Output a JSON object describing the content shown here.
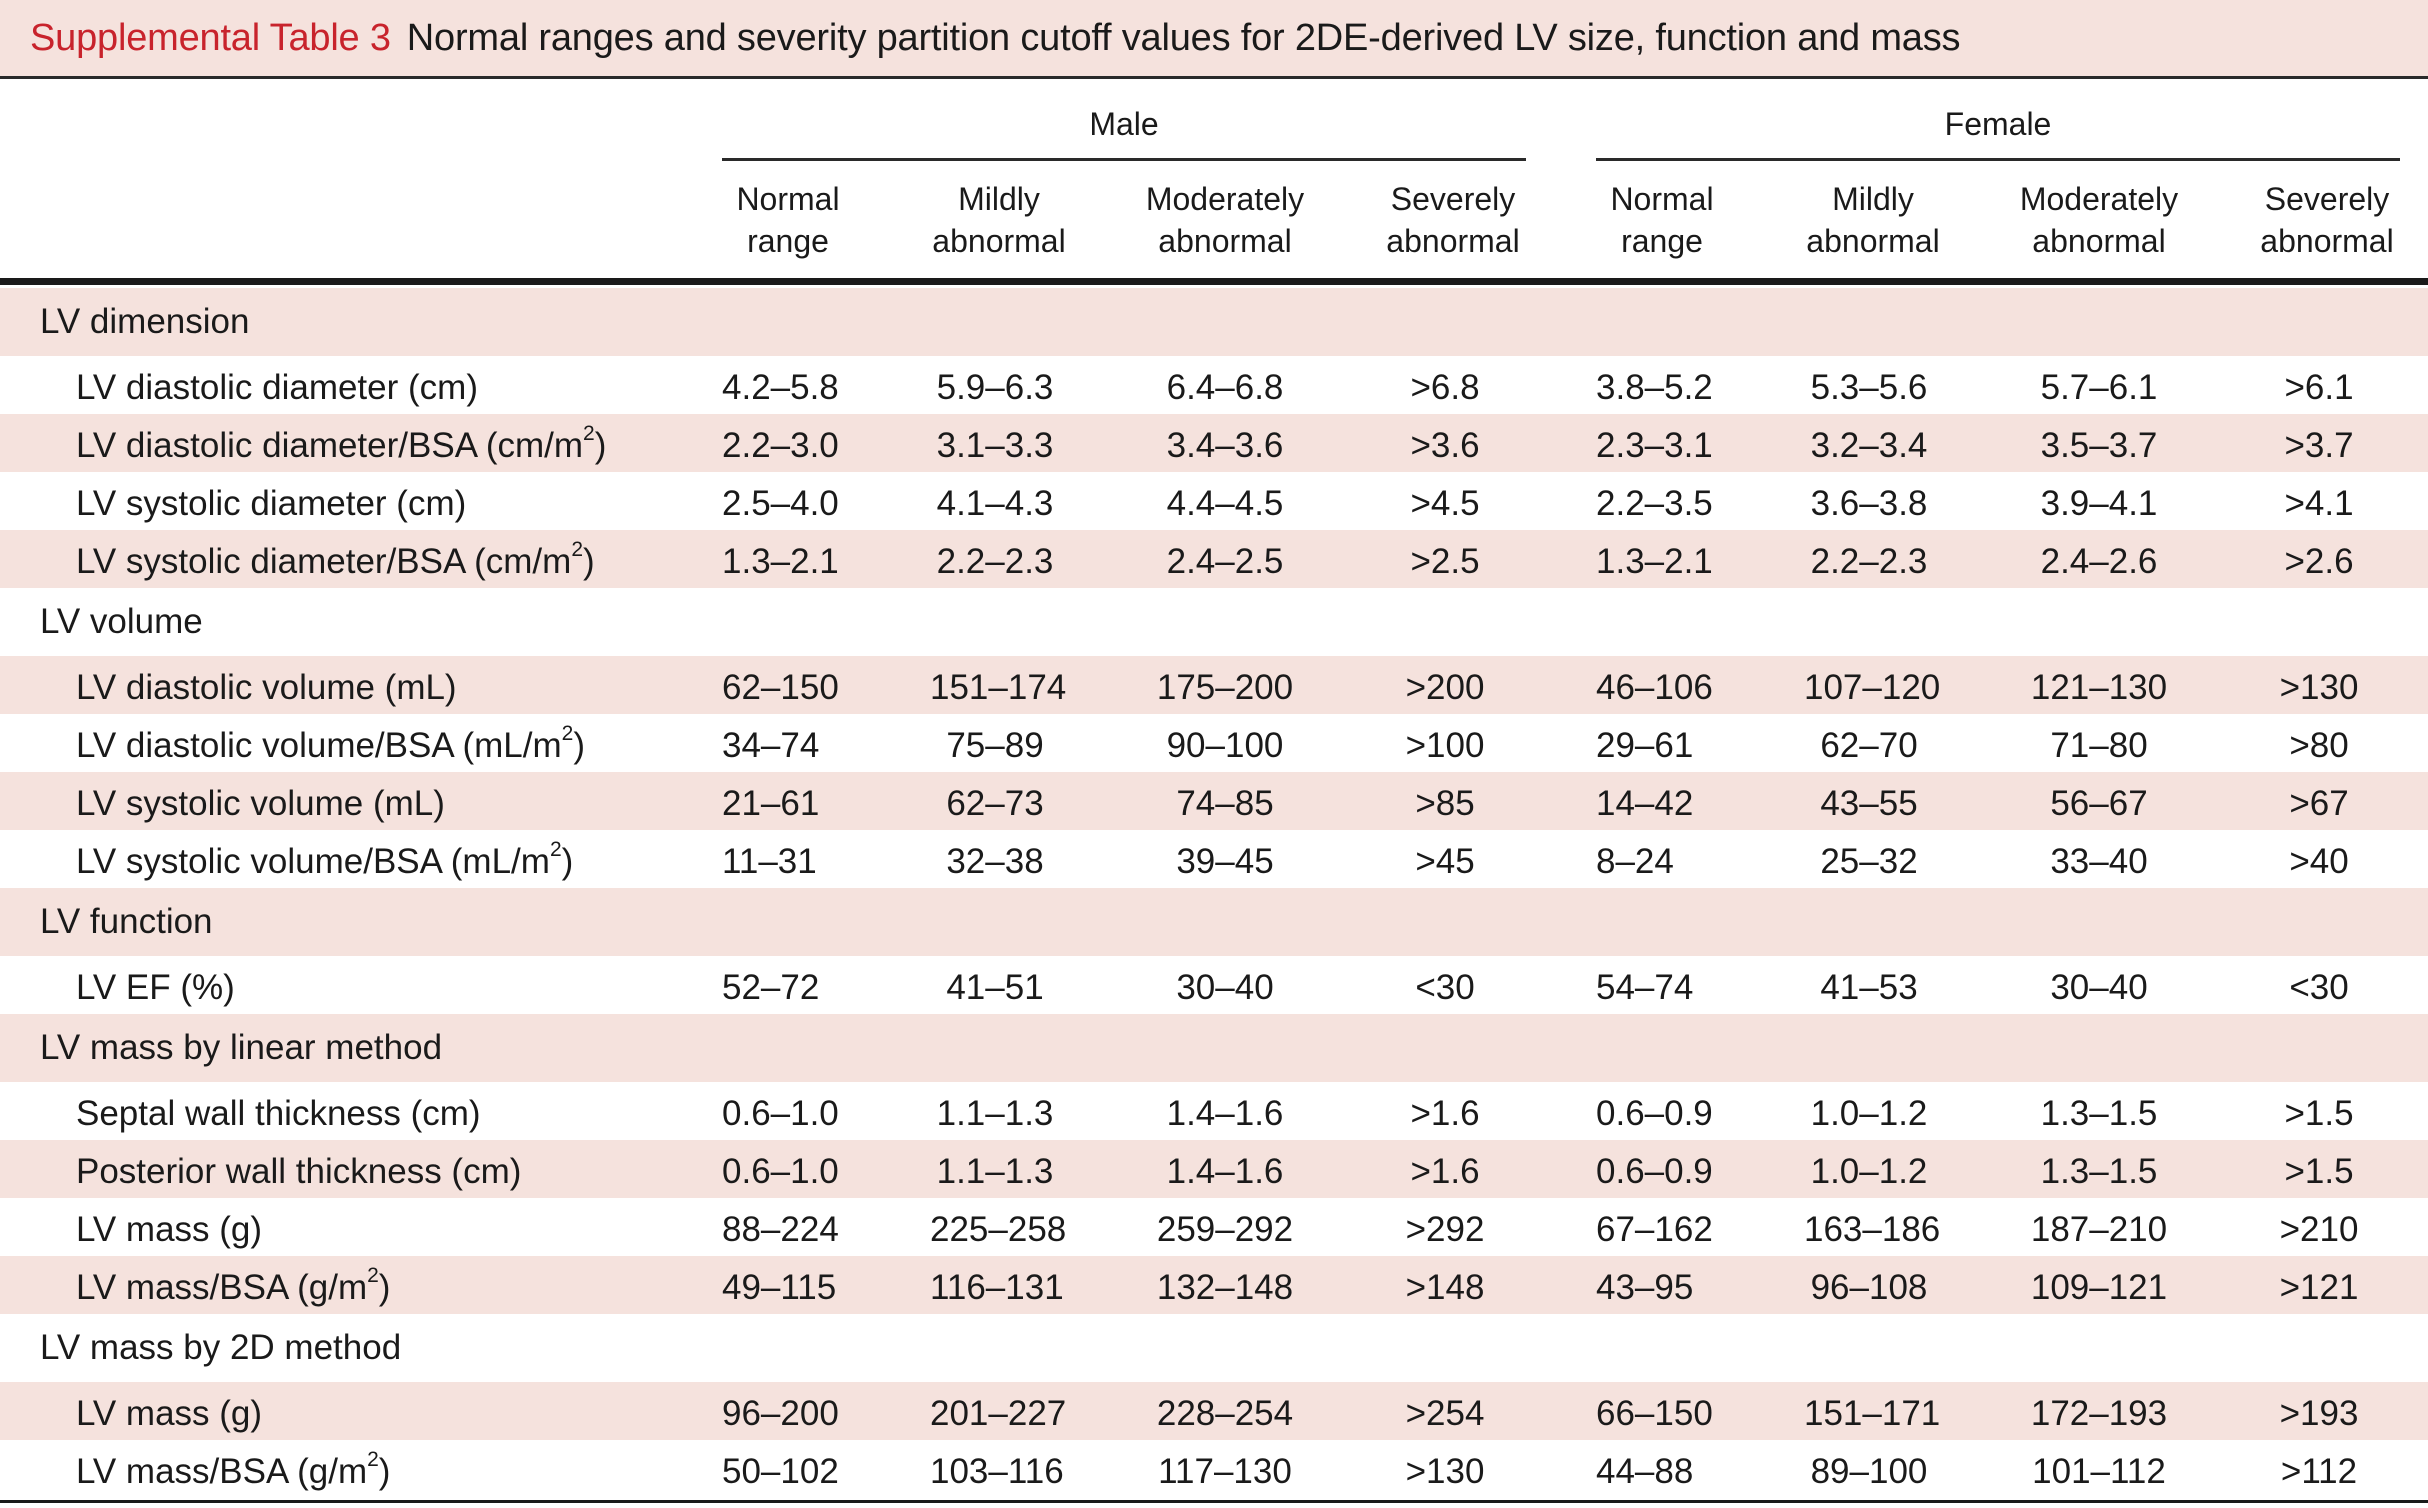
{
  "title": {
    "label": "Supplemental Table 3",
    "text": "Normal ranges and severity partition cutoff values for 2DE-derived LV size, function and mass"
  },
  "groups": [
    "Male",
    "Female"
  ],
  "columns": [
    [
      "Normal",
      "range"
    ],
    [
      "Mildly",
      "abnormal"
    ],
    [
      "Moderately",
      "abnormal"
    ],
    [
      "Severely",
      "abnormal"
    ]
  ],
  "rows": [
    {
      "type": "section",
      "label": "LV dimension"
    },
    {
      "type": "item",
      "label": "LV diastolic diameter (cm)",
      "values": [
        "4.2–5.8",
        "5.9–6.3",
        "6.4–6.8",
        ">6.8",
        "3.8–5.2",
        "5.3–5.6",
        "5.7–6.1",
        ">6.1"
      ]
    },
    {
      "type": "item",
      "label": "LV diastolic diameter/BSA (cm/m",
      "sup": "2",
      "suffix": ")",
      "values": [
        "2.2–3.0",
        "3.1–3.3",
        "3.4–3.6",
        ">3.6",
        "2.3–3.1",
        "3.2–3.4",
        "3.5–3.7",
        ">3.7"
      ]
    },
    {
      "type": "item",
      "label": "LV systolic diameter (cm)",
      "values": [
        "2.5–4.0",
        "4.1–4.3",
        "4.4–4.5",
        ">4.5",
        "2.2–3.5",
        "3.6–3.8",
        "3.9–4.1",
        ">4.1"
      ]
    },
    {
      "type": "item",
      "label": "LV systolic diameter/BSA (cm/m",
      "sup": "2",
      "suffix": ")",
      "values": [
        "1.3–2.1",
        "2.2–2.3",
        "2.4–2.5",
        ">2.5",
        "1.3–2.1",
        "2.2–2.3",
        "2.4–2.6",
        ">2.6"
      ]
    },
    {
      "type": "section",
      "label": "LV volume"
    },
    {
      "type": "item",
      "label": "LV diastolic volume (mL)",
      "values": [
        "62–150",
        "151–174",
        "175–200",
        ">200",
        "46–106",
        "107–120",
        "121–130",
        ">130"
      ]
    },
    {
      "type": "item",
      "label": "LV diastolic volume/BSA (mL/m",
      "sup": "2",
      "suffix": ")",
      "values": [
        "34–74",
        "75–89",
        "90–100",
        ">100",
        "29–61",
        "62–70",
        "71–80",
        ">80"
      ]
    },
    {
      "type": "item",
      "label": "LV systolic volume (mL)",
      "values": [
        "21–61",
        "62–73",
        "74–85",
        ">85",
        "14–42",
        "43–55",
        "56–67",
        ">67"
      ]
    },
    {
      "type": "item",
      "label": "LV systolic volume/BSA (mL/m",
      "sup": "2",
      "suffix": ")",
      "values": [
        "11–31",
        "32–38",
        "39–45",
        ">45",
        "8–24",
        "25–32",
        "33–40",
        ">40"
      ]
    },
    {
      "type": "section",
      "label": "LV function"
    },
    {
      "type": "item",
      "label": "LV EF (%)",
      "values": [
        "52–72",
        "41–51",
        "30–40",
        "<30",
        "54–74",
        "41–53",
        "30–40",
        "<30"
      ]
    },
    {
      "type": "section",
      "label": "LV mass by linear method"
    },
    {
      "type": "item",
      "label": "Septal wall thickness (cm)",
      "values": [
        "0.6–1.0",
        "1.1–1.3",
        "1.4–1.6",
        ">1.6",
        "0.6–0.9",
        "1.0–1.2",
        "1.3–1.5",
        ">1.5"
      ]
    },
    {
      "type": "item",
      "label": "Posterior wall thickness (cm)",
      "values": [
        "0.6–1.0",
        "1.1–1.3",
        "1.4–1.6",
        ">1.6",
        "0.6–0.9",
        "1.0–1.2",
        "1.3–1.5",
        ">1.5"
      ]
    },
    {
      "type": "item",
      "label": "LV mass (g)",
      "values": [
        "88–224",
        "225–258",
        "259–292",
        ">292",
        "67–162",
        "163–186",
        "187–210",
        ">210"
      ]
    },
    {
      "type": "item",
      "label": "LV mass/BSA (g/m",
      "sup": "2",
      "suffix": ")",
      "values": [
        "49–115",
        "116–131",
        "132–148",
        ">148",
        "43–95",
        "96–108",
        "109–121",
        ">121"
      ]
    },
    {
      "type": "section",
      "label": "LV mass by 2D method"
    },
    {
      "type": "item",
      "label": "LV mass (g)",
      "values": [
        "96–200",
        "201–227",
        "228–254",
        ">254",
        "66–150",
        "151–171",
        "172–193",
        ">193"
      ]
    },
    {
      "type": "item",
      "label": "LV mass/BSA (g/m",
      "sup": "2",
      "suffix": ")",
      "values": [
        "50–102",
        "103–116",
        "117–130",
        ">130",
        "44–88",
        "89–100",
        "101–112",
        ">112"
      ]
    }
  ]
}
